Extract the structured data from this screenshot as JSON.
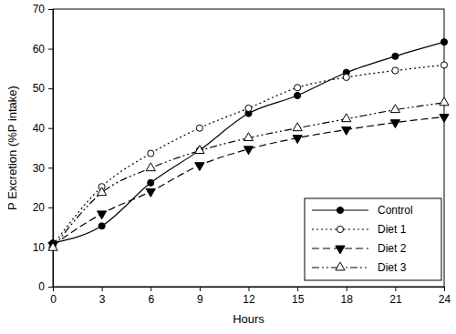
{
  "chart_data": {
    "type": "line",
    "x_label": "Hours",
    "y_label": "P Excretion (%P intake)",
    "x": [
      0,
      3,
      6,
      9,
      12,
      15,
      18,
      21,
      24
    ],
    "series": [
      {
        "name": "Control",
        "color": "#000000",
        "marker": "circle",
        "line_style": "solid",
        "values": [
          11,
          15.3,
          26.2,
          34.4,
          43.7,
          48.2,
          54,
          58.1,
          61.7
        ]
      },
      {
        "name": "Diet 1",
        "color": "#000000",
        "marker": "circle-open",
        "line_style": "dotted",
        "values": [
          10.5,
          25.2,
          33.6,
          40,
          45,
          50.2,
          52.8,
          54.5,
          55.9
        ]
      },
      {
        "name": "Diet 2",
        "color": "#000000",
        "marker": "triangle-down",
        "line_style": "dashed",
        "values": [
          10.5,
          18.4,
          24,
          30.6,
          34.7,
          37.5,
          39.6,
          41.4,
          42.8
        ]
      },
      {
        "name": "Diet 3",
        "color": "#000000",
        "marker": "triangle-open",
        "line_style": "dashdotdot",
        "values": [
          9.8,
          23.7,
          29.9,
          34.3,
          37.5,
          40,
          42.3,
          44.6,
          46.4
        ]
      }
    ],
    "xlim": [
      0,
      24
    ],
    "xticks": [
      0,
      3,
      6,
      9,
      12,
      15,
      18,
      21,
      24
    ],
    "ylim": [
      0,
      70
    ],
    "yticks": [
      0,
      10,
      20,
      30,
      40,
      50,
      60,
      70
    ],
    "grid": false,
    "legend": "lower right"
  }
}
